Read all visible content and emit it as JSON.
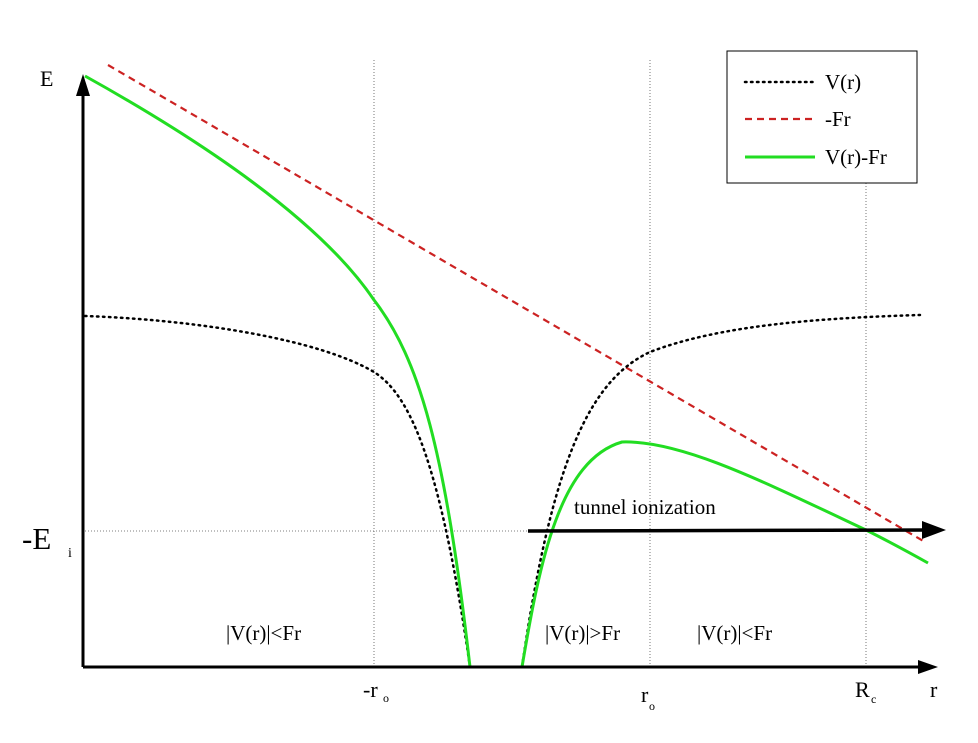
{
  "axes": {
    "y_label": "E",
    "x_label": "r",
    "energy_level": {
      "main": "-E",
      "sub": "i"
    },
    "ticks": [
      {
        "main": "-r",
        "sub": "o"
      },
      {
        "main": "r",
        "sub": "o"
      },
      {
        "main": "R",
        "sub": "c"
      }
    ]
  },
  "legend": [
    {
      "label": "V(r)",
      "style": "dotted",
      "color": "#000000"
    },
    {
      "label": "-Fr",
      "style": "dashed",
      "color": "#cc2222"
    },
    {
      "label": "V(r)-Fr",
      "style": "solid",
      "color": "#22dd22"
    }
  ],
  "annotations": {
    "tunnel": "tunnel ionization",
    "region_left": "|V(r)|<Fr",
    "region_middle": "|V(r)|>Fr",
    "region_right": "|V(r)|<Fr"
  },
  "colors": {
    "axis": "#000000",
    "potential": "#000000",
    "field": "#cc2222",
    "combined": "#22dd22",
    "guides": "#555555"
  }
}
